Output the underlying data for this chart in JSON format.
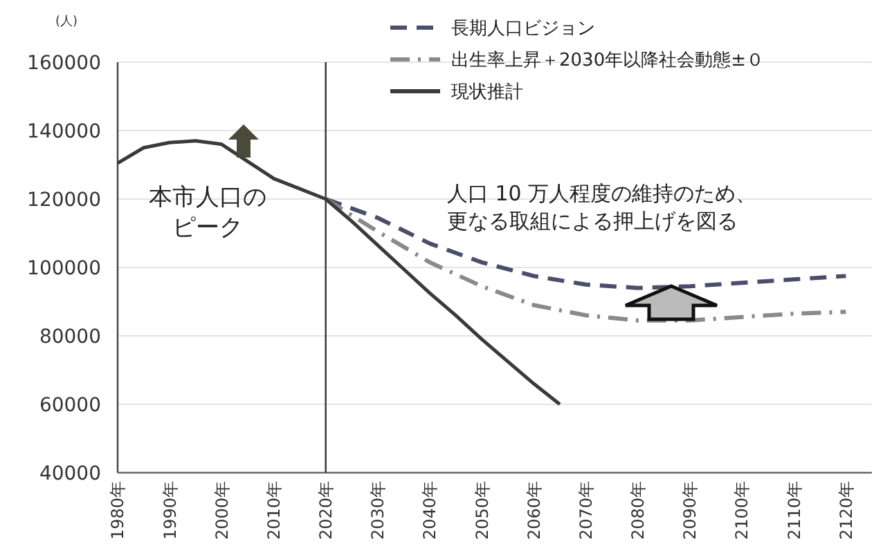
{
  "chart_data": {
    "type": "line",
    "ylabel": "(人)",
    "xlim": [
      1980,
      2125
    ],
    "xticks": [
      {
        "value": 1980,
        "label": "1980年"
      },
      {
        "value": 1990,
        "label": "1990年"
      },
      {
        "value": 2000,
        "label": "2000年"
      },
      {
        "value": 2010,
        "label": "2010年"
      },
      {
        "value": 2020,
        "label": "2020年"
      },
      {
        "value": 2030,
        "label": "2030年"
      },
      {
        "value": 2040,
        "label": "2040年"
      },
      {
        "value": 2050,
        "label": "2050年"
      },
      {
        "value": 2060,
        "label": "2060年"
      },
      {
        "value": 2070,
        "label": "2070年"
      },
      {
        "value": 2080,
        "label": "2080年"
      },
      {
        "value": 2090,
        "label": "2090年"
      },
      {
        "value": 2100,
        "label": "2100年"
      },
      {
        "value": 2110,
        "label": "2110年"
      },
      {
        "value": 2120,
        "label": "2120年"
      }
    ],
    "ylim": [
      40000,
      160000
    ],
    "yticks": [
      40000,
      60000,
      80000,
      100000,
      120000,
      140000,
      160000
    ],
    "grid": "y",
    "legend": "top right",
    "series": [
      {
        "name": "長期人口ビジョン",
        "color": "#4a4e6a",
        "line_style": "dashed",
        "x": [
          2020,
          2030,
          2040,
          2050,
          2060,
          2070,
          2080,
          2090,
          2100,
          2110,
          2120
        ],
        "values": [
          120000,
          114500,
          107000,
          101500,
          97500,
          95000,
          94000,
          94500,
          95500,
          96500,
          97500
        ]
      },
      {
        "name": "出生率上昇＋2030年以降社会動態±０",
        "color": "#8a8a8a",
        "line_style": "dashdot",
        "x": [
          2020,
          2030,
          2040,
          2050,
          2060,
          2070,
          2080,
          2090,
          2100,
          2110,
          2120
        ],
        "values": [
          120000,
          110500,
          101500,
          94500,
          89000,
          86000,
          84500,
          84500,
          85500,
          86500,
          87000
        ]
      },
      {
        "name": "現状推計",
        "color": "#3a3a3a",
        "line_style": "solid",
        "x": [
          1980,
          1985,
          1990,
          1995,
          2000,
          2005,
          2010,
          2015,
          2020,
          2025,
          2030,
          2035,
          2040,
          2045,
          2050,
          2055,
          2060,
          2065
        ],
        "values": [
          130500,
          135000,
          136500,
          137000,
          136000,
          131000,
          126000,
          123000,
          120000,
          113500,
          106500,
          99500,
          92500,
          86000,
          79000,
          72500,
          66000,
          60000
        ]
      }
    ],
    "ref_lines": [
      {
        "axis": "x",
        "value": 2020,
        "color": "#333333"
      }
    ],
    "annotations": [
      "本市人口の",
      "ピーク",
      "人口 10 万人程度の維持のため、",
      "更なる取組による押上げを図る"
    ]
  }
}
